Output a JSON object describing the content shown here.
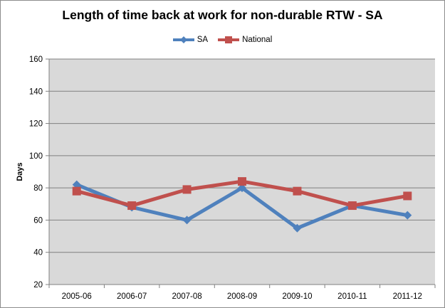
{
  "chart_data": {
    "type": "line",
    "title": "Length of time back at work for non-durable RTW - SA",
    "xlabel": "",
    "ylabel": "Days",
    "categories": [
      "2005-06",
      "2006-07",
      "2007-08",
      "2008-09",
      "2009-10",
      "2010-11",
      "2011-12"
    ],
    "ylim": [
      20,
      160
    ],
    "yticks": [
      20,
      40,
      60,
      80,
      100,
      120,
      140,
      160
    ],
    "grid": true,
    "legend_position": "top",
    "series": [
      {
        "name": "SA",
        "color": "#4f81bd",
        "marker": "diamond",
        "values": [
          82,
          68,
          60,
          80,
          55,
          69,
          63
        ]
      },
      {
        "name": "National",
        "color": "#c0504d",
        "marker": "square",
        "values": [
          78,
          69,
          79,
          84,
          78,
          69,
          75
        ]
      }
    ]
  }
}
